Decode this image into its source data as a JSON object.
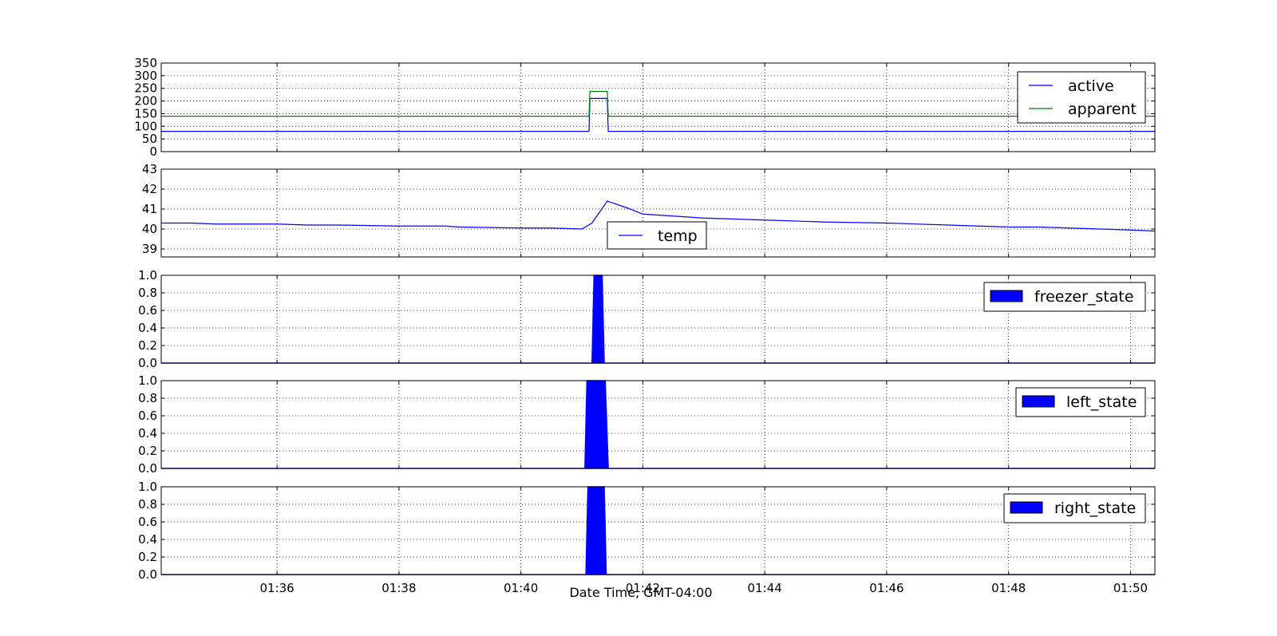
{
  "chart_data": [
    {
      "type": "line",
      "ylim": [
        0,
        350
      ],
      "yticks": [
        "0",
        "50",
        "100",
        "150",
        "200",
        "250",
        "300",
        "350"
      ],
      "grid": true,
      "legend_position": "upper-right",
      "x": [
        "01:34:06",
        "01:36:00",
        "01:38:00",
        "01:40:00",
        "01:41:00",
        "01:41:07",
        "01:41:08",
        "01:41:25",
        "01:41:26",
        "01:44:00",
        "01:48:00",
        "01:50:24"
      ],
      "series": [
        {
          "name": "active",
          "color": "#0000ff",
          "values": [
            80,
            80,
            80,
            80,
            80,
            80,
            210,
            210,
            80,
            80,
            80,
            80
          ]
        },
        {
          "name": "apparent",
          "color": "#008000",
          "values": [
            140,
            140,
            140,
            140,
            140,
            140,
            238,
            238,
            140,
            140,
            140,
            140
          ]
        }
      ]
    },
    {
      "type": "line",
      "ylim": [
        38.6,
        43
      ],
      "yticks": [
        "39",
        "40",
        "41",
        "42",
        "43"
      ],
      "grid": true,
      "legend_position": "lower-center",
      "x": [
        "01:34:06",
        "01:34:35",
        "01:35:00",
        "01:36:00",
        "01:36:30",
        "01:37:00",
        "01:38:00",
        "01:38:45",
        "01:39:00",
        "01:40:00",
        "01:40:30",
        "01:41:00",
        "01:41:10",
        "01:41:25",
        "01:41:45",
        "01:42:00",
        "01:42:30",
        "01:43:00",
        "01:43:30",
        "01:44:00",
        "01:45:00",
        "01:46:00",
        "01:47:00",
        "01:47:30",
        "01:48:00",
        "01:48:30",
        "01:49:00",
        "01:49:30",
        "01:50:00",
        "01:50:24"
      ],
      "series": [
        {
          "name": "temp",
          "color": "#0000ff",
          "values": [
            40.3,
            40.3,
            40.25,
            40.25,
            40.2,
            40.2,
            40.15,
            40.15,
            40.1,
            40.05,
            40.05,
            40.0,
            40.3,
            41.4,
            41.05,
            40.75,
            40.65,
            40.55,
            40.5,
            40.45,
            40.35,
            40.3,
            40.2,
            40.15,
            40.1,
            40.1,
            40.05,
            40.0,
            39.95,
            39.9
          ]
        }
      ]
    },
    {
      "type": "area",
      "ylim": [
        0,
        1.0
      ],
      "yticks": [
        "0.0",
        "0.2",
        "0.4",
        "0.6",
        "0.8",
        "1.0"
      ],
      "grid": true,
      "legend_position": "upper-right",
      "x": [
        "01:34:06",
        "01:41:10",
        "01:41:12",
        "01:41:20",
        "01:41:22",
        "01:50:24"
      ],
      "series": [
        {
          "name": "freezer_state",
          "color": "#0000ff",
          "values": [
            0,
            0,
            1,
            1,
            0,
            0
          ]
        }
      ]
    },
    {
      "type": "area",
      "ylim": [
        0,
        1.0
      ],
      "yticks": [
        "0.0",
        "0.2",
        "0.4",
        "0.6",
        "0.8",
        "1.0"
      ],
      "grid": true,
      "legend_position": "upper-right",
      "x": [
        "01:34:06",
        "01:41:03",
        "01:41:05",
        "01:41:23",
        "01:41:26",
        "01:50:24"
      ],
      "series": [
        {
          "name": "left_state",
          "color": "#0000ff",
          "values": [
            0,
            0,
            1,
            1,
            0,
            0
          ]
        }
      ]
    },
    {
      "type": "area",
      "ylim": [
        0,
        1.0
      ],
      "yticks": [
        "0.0",
        "0.2",
        "0.4",
        "0.6",
        "0.8",
        "1.0"
      ],
      "grid": true,
      "legend_position": "upper-right",
      "x": [
        "01:34:06",
        "01:41:04",
        "01:41:06",
        "01:41:22",
        "01:41:24",
        "01:50:24"
      ],
      "series": [
        {
          "name": "right_state",
          "color": "#0000ff",
          "values": [
            0,
            0,
            1,
            1,
            0,
            0
          ]
        }
      ]
    }
  ],
  "x_axis": {
    "range": [
      "01:34:06",
      "01:50:24"
    ],
    "ticks": [
      "01:36",
      "01:38",
      "01:40",
      "01:42",
      "01:44",
      "01:46",
      "01:48",
      "01:50"
    ],
    "label": "Date Time, GMT-04:00"
  }
}
